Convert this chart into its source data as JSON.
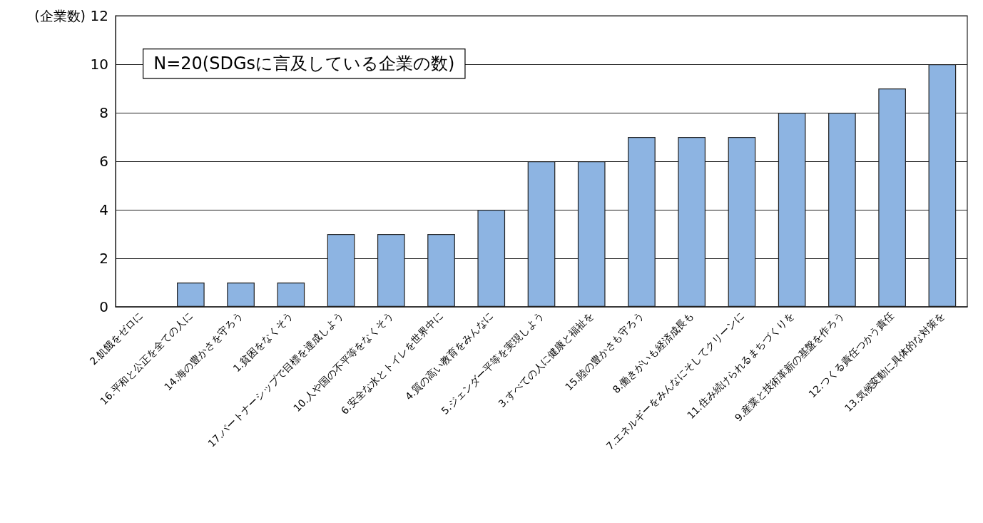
{
  "chart_data": {
    "type": "bar",
    "ylabel": "(企業数)",
    "categories": [
      "2.飢餓をゼロに",
      "16.平和と公正を全ての人に",
      "14.海の豊かさを守ろう",
      "1.貧困をなくそう",
      "17.パートナーシップで目標を達成しよう",
      "10.人や国の不平等をなくそう",
      "6.安全な水とトイレを世界中に",
      "4.質の高い教育をみんなに",
      "5.ジェンダー平等を実現しよう",
      "3.すべての人に健康と福祉を",
      "15.陸の豊かさも守ろう",
      "8.働きがいも経済成長も",
      "7.エネルギーをみんなにそしてクリーンに",
      "11.住み続けられるまちづくりを",
      "9.産業と技術革新の基盤を作ろう",
      "12.つくる責任つかう責任",
      "13.気候変動に具体的な対策を"
    ],
    "values": [
      0,
      1,
      1,
      1,
      3,
      3,
      3,
      4,
      6,
      6,
      7,
      7,
      7,
      8,
      8,
      9,
      10
    ],
    "color": "#8db4e2",
    "ylim": [
      0,
      12
    ],
    "yticks": [
      0,
      2,
      4,
      6,
      8,
      10,
      12
    ],
    "grid": "y",
    "annotations": [
      "N=20(SDGsに言及している企業の数)"
    ]
  }
}
